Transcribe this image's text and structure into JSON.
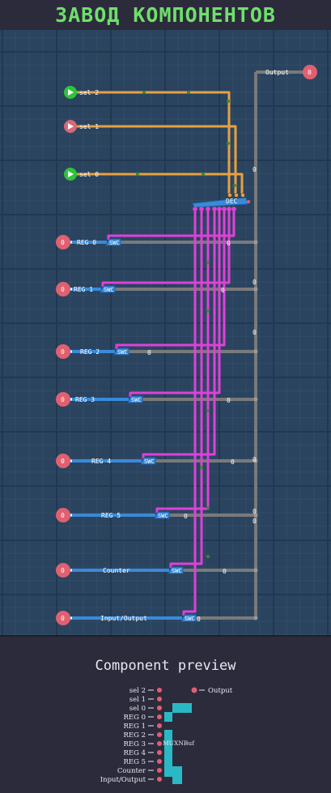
{
  "title": "ЗАВОД КОМПОНЕНТОВ",
  "colors": {
    "board": "#2a4460",
    "wire_orange": "#e8a040",
    "wire_magenta": "#e040d8",
    "wire_blue": "#3a8ad8",
    "wire_gray": "#7a7a7a",
    "input_green": "#2ec43a",
    "pin_red": "#e06070",
    "title_green": "#6ee06a",
    "preview_bar": "#2ab8c4"
  },
  "inputs": [
    {
      "label": "sel 2"
    },
    {
      "label": "sel 1"
    },
    {
      "label": "sel 0"
    }
  ],
  "decoder": {
    "label": "DEC"
  },
  "output": {
    "label": "Output",
    "value": "0"
  },
  "registers": [
    {
      "label": "REG 0",
      "pin": "0",
      "switch": "SWC",
      "value": "0"
    },
    {
      "label": "REG 1",
      "pin": "0",
      "switch": "SWC",
      "value": "0"
    },
    {
      "label": "REG 2",
      "pin": "0",
      "switch": "SWC",
      "value": "0"
    },
    {
      "label": "REG 3",
      "pin": "0",
      "switch": "SWC",
      "value": "0"
    },
    {
      "label": "REG 4",
      "pin": "0",
      "switch": "SWC",
      "value": "0"
    },
    {
      "label": "REG 5",
      "pin": "0",
      "switch": "SWC",
      "value": "0"
    },
    {
      "label": "Counter",
      "pin": "0",
      "switch": "SWC",
      "value": "0"
    },
    {
      "label": "Input/Output",
      "pin": "0",
      "switch": "SWC",
      "value": "0"
    }
  ],
  "bus_values": [
    "0",
    "0",
    "0",
    "0",
    "0",
    "0",
    "0"
  ],
  "preview": {
    "title": "Component preview",
    "left_pins": [
      "sel 2",
      "sel 1",
      "sel 0",
      "REG 0",
      "REG 1",
      "REG 2",
      "REG 3",
      "REG 4",
      "REG 5",
      "Counter",
      "Input/Output"
    ],
    "right_pins": [
      "Output"
    ],
    "component_label": "MUXNBuf"
  }
}
